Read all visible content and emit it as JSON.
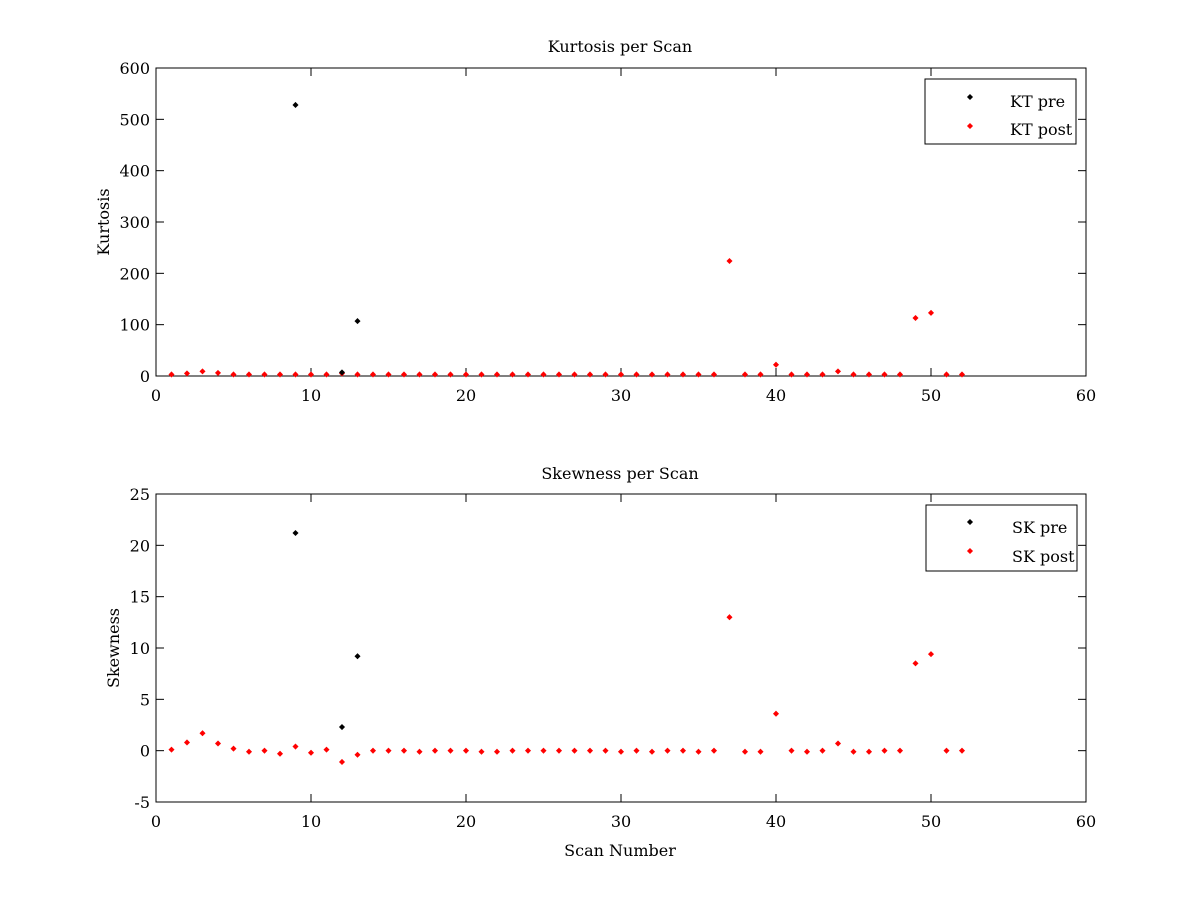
{
  "chart_data": [
    {
      "type": "scatter",
      "title": "Kurtosis per Scan",
      "xlabel": "",
      "ylabel": "Kurtosis",
      "xlim": [
        0,
        60
      ],
      "ylim": [
        0,
        600
      ],
      "xticks": [
        0,
        10,
        20,
        30,
        40,
        50,
        60
      ],
      "yticks": [
        0,
        100,
        200,
        300,
        400,
        500,
        600
      ],
      "grid": false,
      "legend_position": "top-right",
      "series": [
        {
          "name": "KT pre",
          "color": "#000000",
          "x": [
            9,
            12,
            13
          ],
          "y": [
            528,
            7,
            107
          ]
        },
        {
          "name": "KT post",
          "color": "#ff0000",
          "x": [
            1,
            2,
            3,
            4,
            5,
            6,
            7,
            8,
            9,
            10,
            11,
            12,
            13,
            14,
            15,
            16,
            17,
            18,
            19,
            20,
            21,
            22,
            23,
            24,
            25,
            26,
            27,
            28,
            29,
            30,
            31,
            32,
            33,
            34,
            35,
            36,
            37,
            38,
            39,
            40,
            41,
            42,
            43,
            44,
            45,
            46,
            47,
            48,
            49,
            50,
            51,
            52
          ],
          "y": [
            3,
            5,
            9,
            6,
            3,
            3,
            3,
            3,
            3,
            3,
            3,
            5,
            3,
            3,
            3,
            3,
            3,
            3,
            3,
            3,
            3,
            3,
            3,
            3,
            3,
            3,
            3,
            3,
            3,
            3,
            3,
            3,
            3,
            3,
            3,
            3,
            224,
            3,
            3,
            22,
            3,
            3,
            3,
            9,
            3,
            3,
            3,
            3,
            113,
            123,
            3,
            3
          ]
        }
      ]
    },
    {
      "type": "scatter",
      "title": "Skewness per Scan",
      "xlabel": "Scan Number",
      "ylabel": "Skewness",
      "xlim": [
        0,
        60
      ],
      "ylim": [
        -5,
        25
      ],
      "xticks": [
        0,
        10,
        20,
        30,
        40,
        50,
        60
      ],
      "yticks": [
        -5,
        0,
        5,
        10,
        15,
        20,
        25
      ],
      "grid": false,
      "legend_position": "top-right",
      "series": [
        {
          "name": "SK pre",
          "color": "#000000",
          "x": [
            9,
            12,
            13
          ],
          "y": [
            21.2,
            2.3,
            9.2
          ]
        },
        {
          "name": "SK post",
          "color": "#ff0000",
          "x": [
            1,
            2,
            3,
            4,
            5,
            6,
            7,
            8,
            9,
            10,
            11,
            12,
            13,
            14,
            15,
            16,
            17,
            18,
            19,
            20,
            21,
            22,
            23,
            24,
            25,
            26,
            27,
            28,
            29,
            30,
            31,
            32,
            33,
            34,
            35,
            36,
            37,
            38,
            39,
            40,
            41,
            42,
            43,
            44,
            45,
            46,
            47,
            48,
            49,
            50,
            51,
            52
          ],
          "y": [
            0.1,
            0.8,
            1.7,
            0.7,
            0.2,
            -0.1,
            0,
            -0.3,
            0.4,
            -0.2,
            0.1,
            -1.1,
            -0.4,
            0,
            0,
            0,
            -0.1,
            0,
            0,
            0,
            -0.1,
            -0.1,
            0,
            0,
            0,
            0,
            0,
            0,
            0,
            -0.1,
            0,
            -0.1,
            0,
            0,
            -0.1,
            0,
            13,
            -0.1,
            -0.1,
            3.6,
            0,
            -0.1,
            0,
            0.7,
            -0.1,
            -0.1,
            0,
            0,
            8.5,
            9.4,
            0,
            0
          ]
        }
      ]
    }
  ]
}
